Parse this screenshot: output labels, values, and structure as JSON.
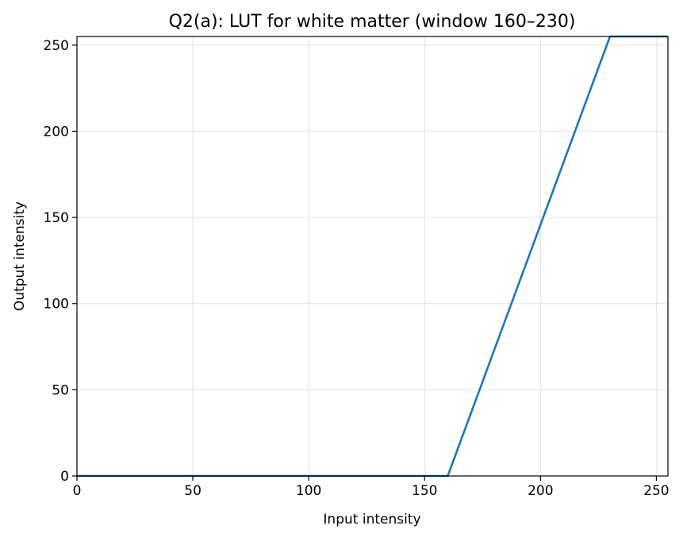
{
  "chart_data": {
    "type": "line",
    "title": "Q2(a): LUT for white matter (window 160–230)",
    "xlabel": "Input intensity",
    "ylabel": "Output intensity",
    "xlim": [
      0,
      255
    ],
    "ylim": [
      0,
      255
    ],
    "x_ticks": [
      0,
      50,
      100,
      150,
      200,
      250
    ],
    "y_ticks": [
      0,
      50,
      100,
      150,
      200,
      250
    ],
    "grid": true,
    "series": [
      {
        "color": "#1f77b4",
        "x": [
          0,
          160,
          230,
          255
        ],
        "y": [
          0,
          0,
          255,
          255
        ]
      }
    ]
  }
}
